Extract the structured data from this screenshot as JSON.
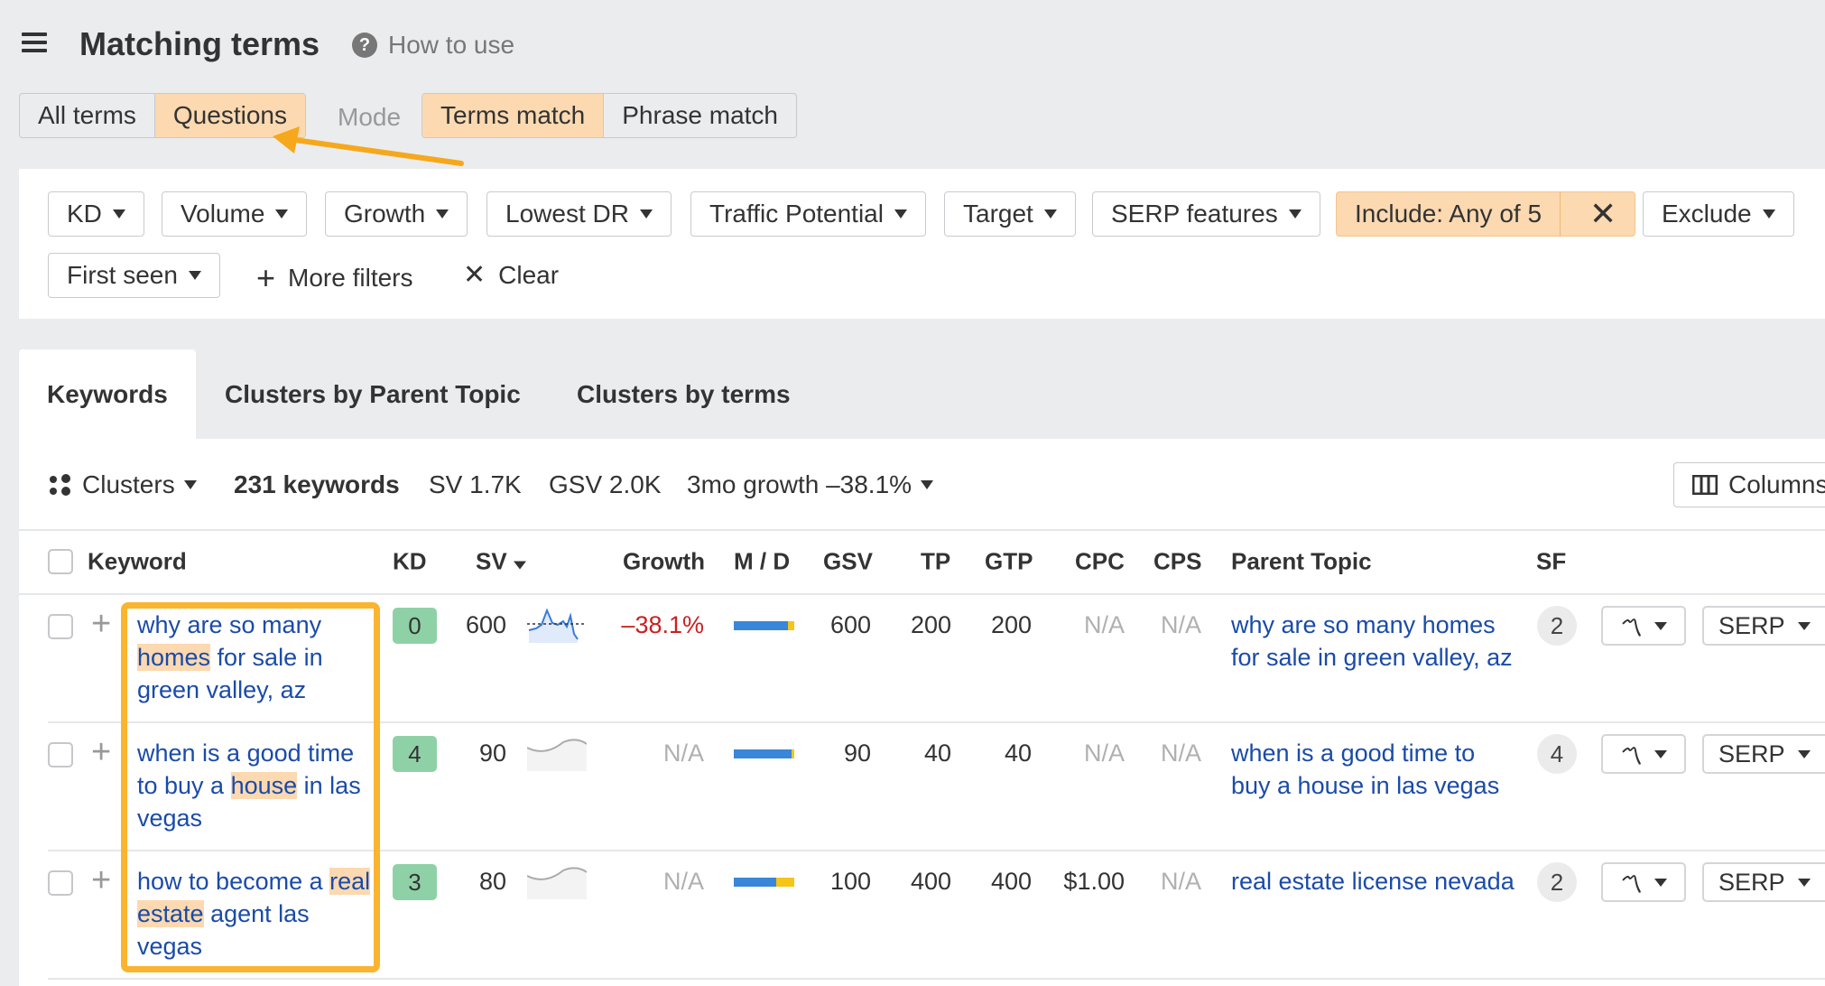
{
  "header": {
    "title": "Matching terms",
    "help_label": "How to use"
  },
  "terms_toggle": [
    {
      "label": "All terms",
      "active": false
    },
    {
      "label": "Questions",
      "active": true
    }
  ],
  "mode_label": "Mode",
  "mode_toggle": [
    {
      "label": "Terms match",
      "active": true
    },
    {
      "label": "Phrase match",
      "active": false
    }
  ],
  "filters": {
    "kd": "KD",
    "volume": "Volume",
    "growth": "Growth",
    "lowest_dr": "Lowest DR",
    "traffic_potential": "Traffic Potential",
    "target": "Target",
    "serp_features": "SERP features",
    "include": "Include: Any of 5",
    "exclude": "Exclude",
    "first_seen": "First seen",
    "more_filters": "More filters",
    "clear": "Clear"
  },
  "tabs": [
    "Keywords",
    "Clusters by Parent Topic",
    "Clusters by terms"
  ],
  "summary": {
    "clusters": "Clusters",
    "keywords": "231 keywords",
    "sv": "SV 1.7K",
    "gsv": "GSV 2.0K",
    "growth": "3mo growth –38.1%",
    "columns": "Columns"
  },
  "columns": {
    "keyword": "Keyword",
    "kd": "KD",
    "sv": "SV",
    "growth": "Growth",
    "md": "M / D",
    "gsv": "GSV",
    "tp": "TP",
    "gtp": "GTP",
    "cpc": "CPC",
    "cps": "CPS",
    "parent_topic": "Parent Topic",
    "sf": "SF"
  },
  "rows": [
    {
      "kw": [
        "why are so many ",
        "homes",
        " for sale in green valley, az"
      ],
      "kd": "0",
      "sv": "600",
      "growth": "–38.1%",
      "md_mobile_pct": 90,
      "gsv": "600",
      "tp": "200",
      "gtp": "200",
      "cpc": "N/A",
      "cps": "N/A",
      "parent": "why are so many homes for sale in green valley, az",
      "sf": "2",
      "serp": "SERP"
    },
    {
      "kw": [
        "when is a good time to buy a ",
        "house",
        " in las vegas"
      ],
      "kd": "4",
      "sv": "90",
      "growth": "N/A",
      "md_mobile_pct": 95,
      "gsv": "90",
      "tp": "40",
      "gtp": "40",
      "cpc": "N/A",
      "cps": "N/A",
      "parent": "when is a good time to buy a house in las vegas",
      "sf": "4",
      "serp": "SERP"
    },
    {
      "kw": [
        "how to become a ",
        "real estate",
        " agent las vegas"
      ],
      "kd": "3",
      "sv": "80",
      "growth": "N/A",
      "md_mobile_pct": 70,
      "gsv": "100",
      "tp": "400",
      "gtp": "400",
      "cpc": "$1.00",
      "cps": "N/A",
      "parent": "real estate license nevada",
      "sf": "2",
      "serp": "SERP"
    }
  ],
  "colors": {
    "highlight": "#fcd9b0",
    "annotation": "#fbb430",
    "link": "#1a4ba8",
    "kd_easy": "#8fd1a6",
    "mobile": "#3a86d8",
    "desktop": "#f5c518",
    "negative": "#cc1f1f"
  }
}
